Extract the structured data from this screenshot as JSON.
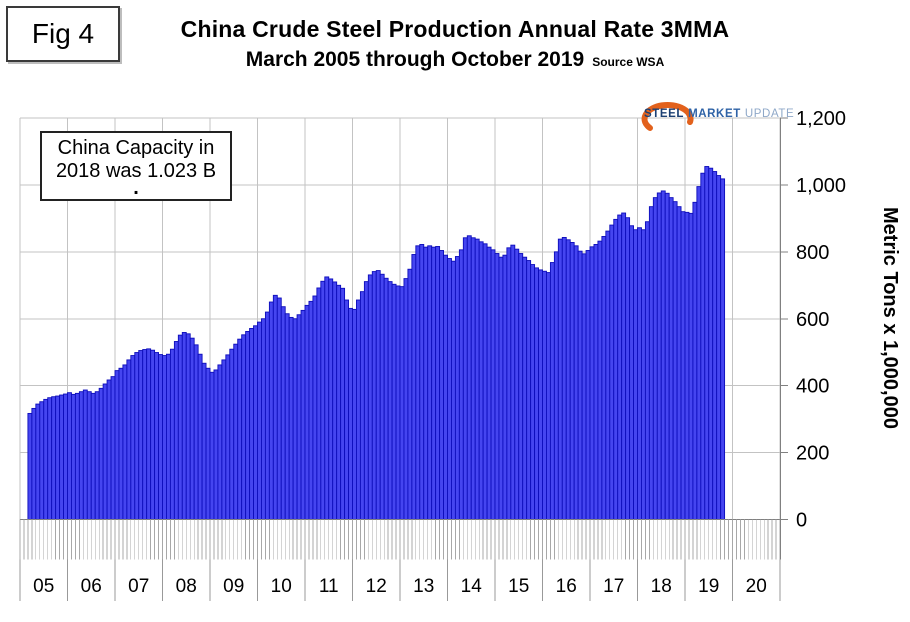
{
  "figure": {
    "fig_label": "Fig 4",
    "title": "China Crude Steel Production Annual Rate 3MMA",
    "subtitle": "March 2005 through October 2019",
    "source": "Source WSA"
  },
  "annotation": {
    "line1": "China Capacity in",
    "line2": "2018 was 1.023 B",
    "line3": "."
  },
  "logo": {
    "word1": "STEEL",
    "word2": "MARKET",
    "word3": "UPDATE",
    "swoosh_color": "#e2611c"
  },
  "y_axis": {
    "title": "Metric Tons x 1,000,000",
    "tick_values": [
      0,
      200,
      400,
      600,
      800,
      1000,
      1200
    ],
    "tick_labels": [
      "0",
      "200",
      "400",
      "600",
      "800",
      "1,000",
      "1,200"
    ],
    "max": 1200
  },
  "x_axis": {
    "year_labels": [
      "05",
      "06",
      "07",
      "08",
      "09",
      "10",
      "11",
      "12",
      "13",
      "14",
      "15",
      "16",
      "17",
      "18",
      "19",
      "20"
    ]
  },
  "colors": {
    "bar_fill": "#4545f0",
    "bar_border": "#0d0dbb",
    "grid": "#c3c3c3",
    "axis": "#808080",
    "hatch": "#a8a8a8",
    "divider": "#999999",
    "text": "#000000"
  },
  "chart_data": {
    "type": "bar",
    "title": "China Crude Steel Production Annual Rate 3MMA",
    "subtitle": "March 2005 through October 2019",
    "source": "Source WSA",
    "ylabel": "Metric Tons x 1,000,000",
    "ylim": [
      0,
      1200
    ],
    "y_ticks": [
      0,
      200,
      400,
      600,
      800,
      1000,
      1200
    ],
    "grid": true,
    "legend": false,
    "frequency": "monthly",
    "start_month": "2005-03",
    "end_month": "2019-10",
    "x_domain_years": [
      "05",
      "06",
      "07",
      "08",
      "09",
      "10",
      "11",
      "12",
      "13",
      "14",
      "15",
      "16",
      "17",
      "18",
      "19",
      "20"
    ],
    "values_unit": "metric tons x 1,000,000 per year (annualized rate, 3-month moving average, approximate values read from chart)",
    "annotation": "China Capacity in 2018 was 1.023 B",
    "values": [
      317,
      332,
      345,
      352,
      359,
      364,
      367,
      369,
      372,
      375,
      379,
      374,
      377,
      382,
      387,
      382,
      377,
      382,
      392,
      405,
      417,
      427,
      445,
      452,
      462,
      477,
      490,
      499,
      505,
      508,
      510,
      506,
      499,
      493,
      490,
      494,
      509,
      532,
      551,
      559,
      555,
      542,
      522,
      494,
      467,
      452,
      440,
      447,
      462,
      477,
      492,
      509,
      524,
      539,
      552,
      562,
      571,
      579,
      590,
      600,
      620,
      650,
      670,
      662,
      636,
      615,
      604,
      600,
      612,
      625,
      640,
      652,
      668,
      692,
      712,
      725,
      719,
      710,
      700,
      691,
      656,
      631,
      628,
      656,
      681,
      711,
      731,
      741,
      744,
      733,
      721,
      711,
      703,
      698,
      696,
      720,
      748,
      792,
      818,
      822,
      814,
      818,
      814,
      816,
      804,
      790,
      780,
      772,
      786,
      806,
      842,
      848,
      842,
      838,
      830,
      824,
      814,
      806,
      795,
      784,
      790,
      812,
      820,
      808,
      795,
      784,
      774,
      762,
      752,
      746,
      742,
      738,
      768,
      800,
      838,
      843,
      836,
      828,
      818,
      802,
      794,
      804,
      815,
      822,
      832,
      846,
      862,
      880,
      897,
      910,
      916,
      902,
      878,
      866,
      872,
      866,
      890,
      935,
      962,
      976,
      982,
      975,
      962,
      950,
      935,
      920,
      918,
      915,
      948,
      995,
      1035,
      1055,
      1050,
      1040,
      1028,
      1018
    ]
  }
}
